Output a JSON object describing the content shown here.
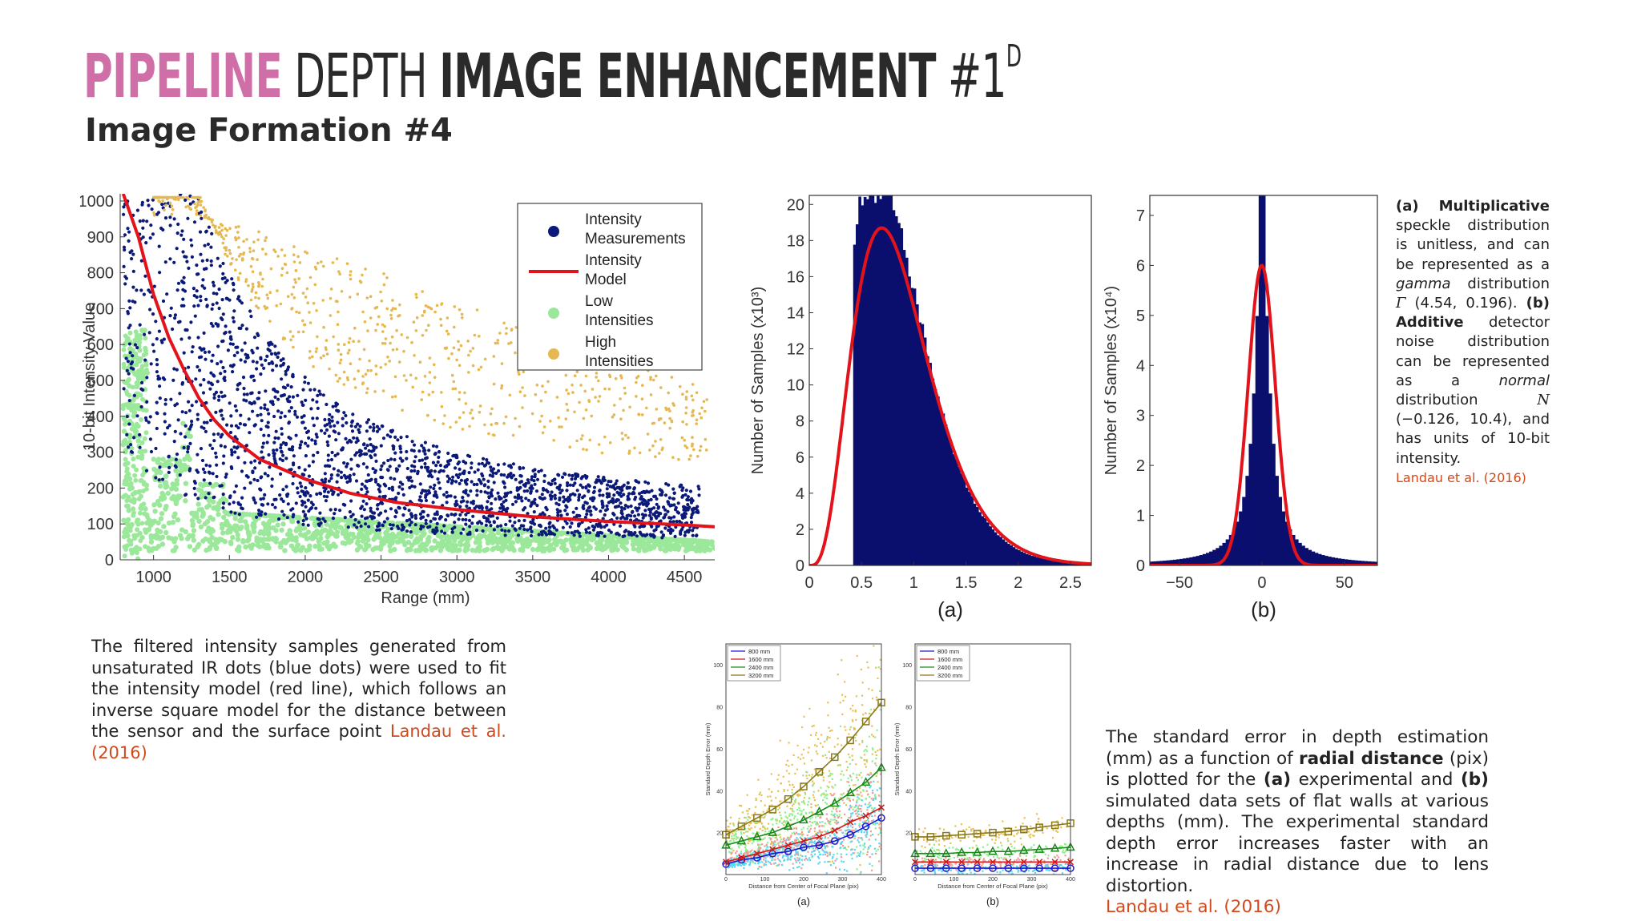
{
  "header": {
    "title_part1": "PIPELINE",
    "title_part2": "DEPTH",
    "title_part3": "IMAGE ENHANCEMENT",
    "title_part4": "#1",
    "title_sup": "D",
    "subtitle": "Image Formation #4"
  },
  "captions": {
    "left": {
      "text": "The filtered intensity samples generated from unsaturated IR dots (blue dots) were used to fit the intensity model (red line), which follows an inverse square model for the distance between the sensor and the surface point",
      "cite": "Landau et al. (2016)"
    },
    "side": {
      "a_label": "(a)",
      "a_bold": "Multiplicative",
      "a_text1": "speckle distribution is unitless, and can be represented as a",
      "a_italic": "gamma",
      "a_text2": "distribution",
      "gamma_symbol": "Γ",
      "gamma_params": "(4.54, 0.196).",
      "b_label": "(b)",
      "b_bold": "Additive",
      "b_text1": "detector noise distribution can be represented as a",
      "b_italic": "normal",
      "b_text2": "distribution",
      "normal_symbol": "N",
      "normal_params": "(−0.126, 10.4),",
      "b_text3": "and has units of 10-bit intensity.",
      "cite": "Landau et al. (2016)"
    },
    "right": {
      "t1": "The standard error in depth estimation (mm) as a function of",
      "b1": "radial distance",
      "t2": "(pix) is plotted for the",
      "b2": "(a)",
      "t3": "experimental and",
      "b3": "(b)",
      "t4": "simulated data sets of flat walls at various depths (mm). The experimental standard depth error increases faster with an increase in radial distance due to lens distortion.",
      "cite": "Landau et al. (2016)"
    }
  },
  "chart_data": [
    {
      "id": "scatter",
      "type": "scatter",
      "title": "",
      "xlabel": "Range (mm)",
      "ylabel": "10-bit Intensity Value",
      "xlim": [
        780,
        4700
      ],
      "ylim": [
        0,
        1020
      ],
      "xticks": [
        1000,
        1500,
        2000,
        2500,
        3000,
        3500,
        4000,
        4500
      ],
      "yticks": [
        0,
        100,
        200,
        300,
        400,
        500,
        600,
        700,
        800,
        900,
        1000
      ],
      "legend": [
        {
          "label_line1": "Intensity",
          "label_line2": "Measurements",
          "color": "#0b1a78",
          "marker": "dot"
        },
        {
          "label_line1": "Intensity",
          "label_line2": "Model",
          "color": "#e3131b",
          "marker": "line"
        },
        {
          "label_line1": "Low",
          "label_line2": "Intensities",
          "color": "#9be89b",
          "marker": "dot"
        },
        {
          "label_line1": "High",
          "label_line2": "Intensities",
          "color": "#e6b851",
          "marker": "dot"
        }
      ],
      "legend_position": "top-right",
      "model": {
        "name": "Intensity Model",
        "points": [
          [
            800,
            1020
          ],
          [
            900,
            900
          ],
          [
            1000,
            740
          ],
          [
            1100,
            620
          ],
          [
            1200,
            530
          ],
          [
            1300,
            450
          ],
          [
            1400,
            390
          ],
          [
            1500,
            345
          ],
          [
            1700,
            280
          ],
          [
            2000,
            225
          ],
          [
            2300,
            185
          ],
          [
            2600,
            160
          ],
          [
            3000,
            140
          ],
          [
            3500,
            120
          ],
          [
            4000,
            107
          ],
          [
            4500,
            97
          ],
          [
            4700,
            92
          ]
        ]
      },
      "series": [
        {
          "name": "Intensity Measurements",
          "color": "#0b1a78"
        },
        {
          "name": "Low Intensities",
          "color": "#9be89b"
        },
        {
          "name": "High Intensities",
          "color": "#e6b851"
        }
      ]
    },
    {
      "id": "hist_a",
      "type": "bar",
      "subtitle": "(a)",
      "ylabel": "Number of Samples (x10³)",
      "xlim": [
        0,
        2.7
      ],
      "ylim": [
        0,
        20.5
      ],
      "xticks": [
        "0",
        "0.5",
        "1",
        "1.5",
        "2",
        "2.5"
      ],
      "xtick_values": [
        0,
        0.5,
        1,
        1.5,
        2,
        2.5
      ],
      "yticks": [
        0,
        2,
        4,
        6,
        8,
        10,
        12,
        14,
        16,
        18,
        20
      ],
      "bin_width": 0.025,
      "bins_start": 0.42,
      "fit": {
        "distribution": "gamma",
        "shape": 4.54,
        "scale": 0.196,
        "peak": 18.7
      },
      "bar_color": "#0a0f6e",
      "fit_color": "#e3131b"
    },
    {
      "id": "hist_b",
      "type": "bar",
      "subtitle": "(b)",
      "ylabel": "Number of Samples (x10⁴)",
      "xlim": [
        -68,
        70
      ],
      "ylim": [
        0,
        7.4
      ],
      "xticks": [
        "−50",
        "0",
        "50"
      ],
      "xtick_values": [
        -50,
        0,
        50
      ],
      "yticks": [
        0,
        1,
        2,
        3,
        4,
        5,
        6,
        7
      ],
      "bin_width": 2,
      "fit": {
        "distribution": "normal",
        "mean": -0.126,
        "sd": 10.4,
        "peak": 6.0
      },
      "bar_color": "#0a0f6e",
      "fit_color": "#e3131b"
    },
    {
      "id": "depth_a",
      "type": "line",
      "subtitle": "(a)",
      "xlabel": "Distance from Center of Focal Plane (pix)",
      "ylabel": "Standard Depth Error (mm)",
      "xlim": [
        0,
        400
      ],
      "ylim": [
        0,
        110
      ],
      "xticks": [
        0,
        100,
        200,
        300,
        400
      ],
      "yticks": [
        20,
        40,
        60,
        80,
        100
      ],
      "x": [
        0,
        40,
        80,
        120,
        160,
        200,
        240,
        280,
        320,
        360,
        400
      ],
      "series": [
        {
          "name": "800 mm",
          "color": "#1a1ad6",
          "marker": "circle",
          "values": [
            5,
            7,
            8,
            10,
            11,
            13,
            14,
            16,
            19,
            23,
            27
          ]
        },
        {
          "name": "1600 mm",
          "color": "#d61a1a",
          "marker": "x",
          "values": [
            6,
            8,
            10,
            12,
            14,
            16,
            18,
            21,
            25,
            28,
            32
          ]
        },
        {
          "name": "2400 mm",
          "color": "#1a8a1a",
          "marker": "triangle",
          "values": [
            14,
            16,
            18,
            20,
            23,
            26,
            30,
            34,
            39,
            44,
            51
          ]
        },
        {
          "name": "3200 mm",
          "color": "#8a7a1a",
          "marker": "square",
          "values": [
            19,
            23,
            27,
            31,
            36,
            42,
            49,
            56,
            64,
            73,
            82
          ]
        }
      ]
    },
    {
      "id": "depth_b",
      "type": "line",
      "subtitle": "(b)",
      "xlabel": "Distance from Center of Focal Plane (pix)",
      "ylabel": "Standard Depth Error (mm)",
      "xlim": [
        0,
        400
      ],
      "ylim": [
        0,
        110
      ],
      "xticks": [
        0,
        100,
        200,
        300,
        400
      ],
      "yticks": [
        20,
        40,
        60,
        80,
        100
      ],
      "x": [
        0,
        40,
        80,
        120,
        160,
        200,
        240,
        280,
        320,
        360,
        400
      ],
      "series": [
        {
          "name": "800 mm",
          "color": "#1a1ad6",
          "marker": "circle",
          "values": [
            3,
            3,
            3,
            3,
            3,
            3,
            3,
            3,
            3,
            3,
            3
          ]
        },
        {
          "name": "1600 mm",
          "color": "#d61a1a",
          "marker": "x",
          "values": [
            6,
            6,
            6,
            6,
            6,
            6,
            6,
            6,
            6,
            6,
            6
          ]
        },
        {
          "name": "2400 mm",
          "color": "#1a8a1a",
          "marker": "triangle",
          "values": [
            10,
            10,
            10,
            10.5,
            10.5,
            11,
            11,
            11.5,
            12,
            12.5,
            13
          ]
        },
        {
          "name": "3200 mm",
          "color": "#8a7a1a",
          "marker": "square",
          "values": [
            18,
            18,
            18.5,
            19,
            19.5,
            20,
            20.5,
            21.5,
            22.5,
            23.5,
            24.5
          ]
        }
      ]
    }
  ]
}
